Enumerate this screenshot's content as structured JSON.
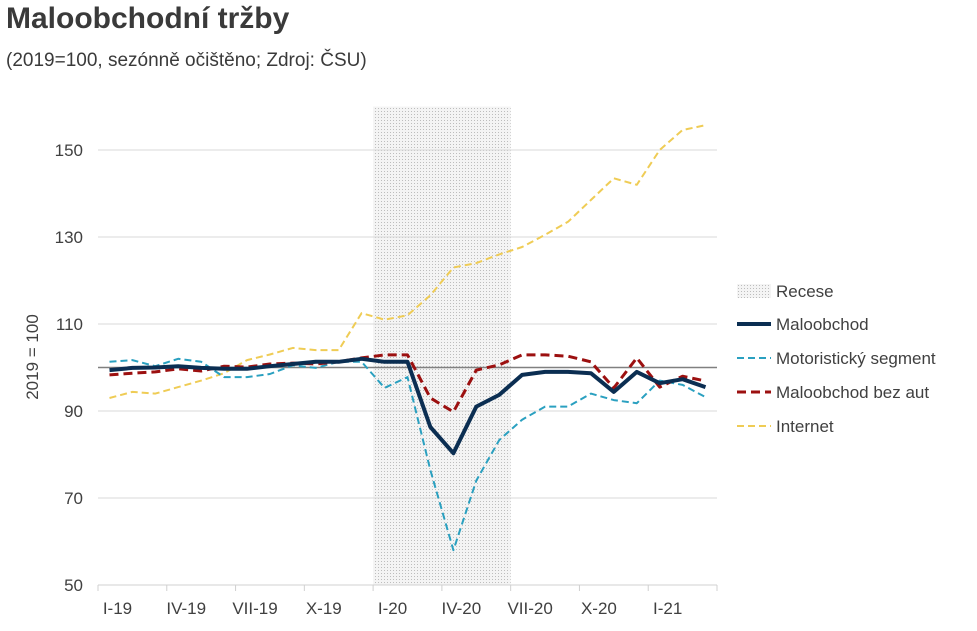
{
  "chart_data": {
    "type": "line",
    "title": "Maloobchodní tržby",
    "subtitle": "(2019=100, sezónně očištěno; Zdroj: ČSU)",
    "ylabel": "2019 = 100",
    "xlabel": "",
    "ylim": [
      50,
      160
    ],
    "yticks": [
      50,
      70,
      90,
      110,
      130,
      150
    ],
    "reference_line": 100,
    "grid": true,
    "legend_position": "right",
    "x_tick_labels": [
      "I-19",
      "IV-19",
      "VII-19",
      "X-19",
      "I-20",
      "IV-20",
      "VII-20",
      "X-20",
      "I-21"
    ],
    "months": 27,
    "recession": {
      "label": "Recese",
      "start_month_index": 12,
      "end_month_index": 17
    },
    "series": [
      {
        "name": "Maloobchod",
        "color": "#0b2e52",
        "style": "solid",
        "values": [
          99.4,
          99.9,
          100,
          100.3,
          99.9,
          99.7,
          99.7,
          100.3,
          100.8,
          101.3,
          101.3,
          102,
          101.3,
          101.3,
          86.3,
          80.3,
          91,
          93.7,
          98.3,
          99,
          99,
          98.7,
          94.4,
          99,
          96.4,
          97.3,
          95.5
        ]
      },
      {
        "name": "Motoristický segment",
        "color": "#2aa0c0",
        "style": "dashed",
        "values": [
          101.3,
          101.7,
          100.3,
          102,
          101.3,
          97.8,
          97.8,
          98.5,
          100.5,
          99.9,
          101.3,
          101.3,
          95.3,
          97.8,
          76.4,
          58,
          74,
          83.3,
          88,
          91,
          91,
          94,
          92.5,
          91.8,
          97,
          96,
          93.2
        ]
      },
      {
        "name": "Maloobchod bez aut",
        "color": "#9c1010",
        "style": "dashed",
        "values": [
          98.3,
          98.7,
          99,
          99.7,
          99.2,
          100.3,
          100.1,
          100.8,
          101,
          100.8,
          101.3,
          102.2,
          102.9,
          102.9,
          93,
          89.8,
          99.4,
          100.6,
          102.9,
          102.9,
          102.6,
          101.3,
          95.3,
          102.2,
          95.5,
          98,
          96.9
        ]
      },
      {
        "name": "Internet",
        "color": "#efcc55",
        "style": "dashed",
        "values": [
          93,
          94.4,
          94,
          95.5,
          97,
          98.7,
          101.7,
          103,
          104.5,
          104,
          104,
          112.5,
          111,
          112,
          116.6,
          123,
          124,
          126,
          127.7,
          130.5,
          133.5,
          138.5,
          143.5,
          142,
          150,
          154.6,
          155.7
        ]
      }
    ]
  }
}
